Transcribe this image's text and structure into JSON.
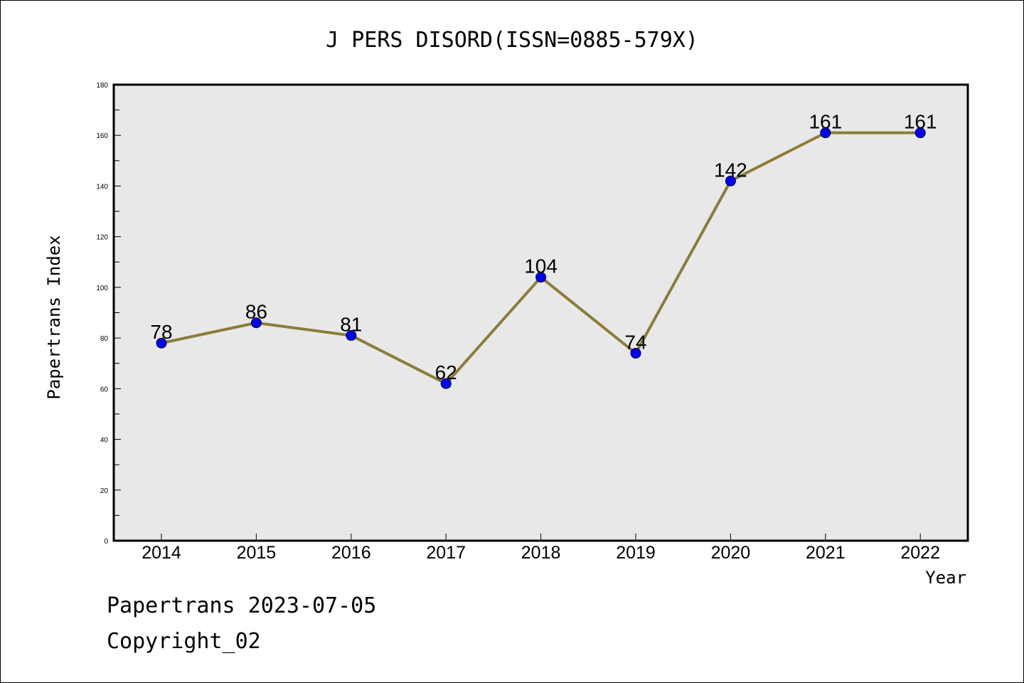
{
  "chart_data": {
    "type": "line",
    "title": "J PERS DISORD(ISSN=0885-579X)",
    "xlabel": "Year",
    "ylabel": "Papertrans Index",
    "categories": [
      "2014",
      "2015",
      "2016",
      "2017",
      "2018",
      "2019",
      "2020",
      "2021",
      "2022"
    ],
    "series": [
      {
        "values": [
          78,
          86,
          81,
          62,
          104,
          74,
          142,
          161,
          161
        ]
      }
    ],
    "data_labels": [
      "78",
      "86",
      "81",
      "62",
      "104",
      "74",
      "142",
      "161",
      "161"
    ],
    "ylim": [
      0,
      180
    ],
    "yticks": [
      "0",
      "20",
      "40",
      "60",
      "80",
      "100",
      "120",
      "140",
      "160",
      "180"
    ],
    "grid": false,
    "legend": "none",
    "colors": {
      "line": "#8B7D3A",
      "marker": "#0000FF",
      "plot_background": "#E8E8E8"
    }
  },
  "footer": {
    "date_line": "Papertrans 2023-07-05",
    "copyright": "Copyright_02"
  }
}
